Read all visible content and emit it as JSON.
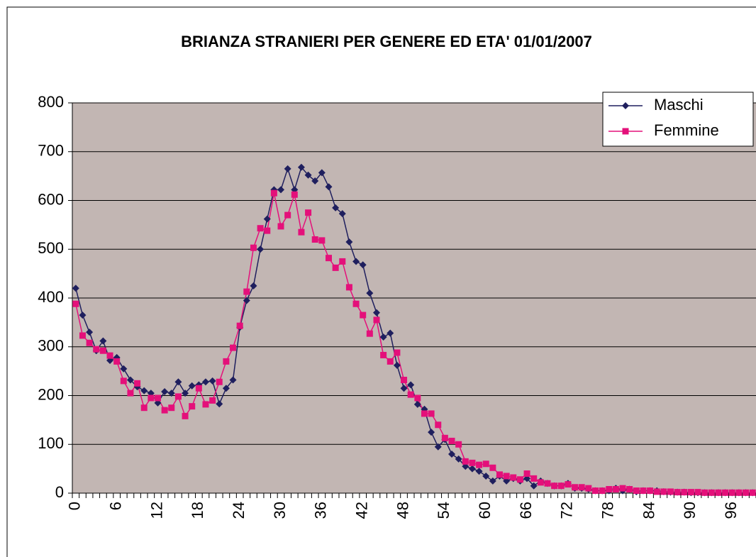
{
  "chart_data": {
    "type": "line",
    "title": "BRIANZA STRANIERI PER GENERE ED ETA' 01/01/2007",
    "categories": [
      0,
      null,
      null,
      null,
      null,
      null,
      6,
      null,
      null,
      null,
      null,
      null,
      12,
      null,
      null,
      null,
      null,
      null,
      18,
      null,
      null,
      null,
      null,
      null,
      24,
      null,
      null,
      null,
      null,
      null,
      30,
      null,
      null,
      null,
      null,
      null,
      36,
      null,
      null,
      null,
      null,
      null,
      42,
      null,
      null,
      null,
      null,
      null,
      48,
      null,
      null,
      null,
      null,
      null,
      54,
      null,
      null,
      null,
      null,
      null,
      60,
      null,
      null,
      null,
      null,
      null,
      66,
      null,
      null,
      null,
      null,
      null,
      72,
      null,
      null,
      null,
      null,
      null,
      78,
      null,
      null,
      null,
      null,
      null,
      84,
      null,
      null,
      null,
      null,
      null,
      90,
      null,
      null,
      null,
      null,
      null,
      96,
      null,
      null,
      null
    ],
    "series": [
      {
        "name": "Maschi",
        "color": "#1f1f5e",
        "marker": "diamond",
        "values": [
          420,
          365,
          330,
          292,
          312,
          272,
          278,
          255,
          232,
          218,
          210,
          205,
          185,
          208,
          205,
          228,
          205,
          220,
          222,
          228,
          230,
          183,
          215,
          232,
          340,
          395,
          425,
          500,
          562,
          622,
          622,
          665,
          622,
          668,
          652,
          640,
          657,
          628,
          585,
          573,
          515,
          475,
          468,
          410,
          370,
          320,
          328,
          262,
          215,
          222,
          182,
          172,
          125,
          95,
          110,
          80,
          70,
          55,
          50,
          45,
          35,
          25,
          35,
          25,
          30,
          25,
          30,
          15,
          25,
          20,
          15,
          15,
          20,
          10,
          10,
          8,
          5,
          5,
          5,
          10,
          5,
          8,
          3,
          5,
          5,
          5,
          3,
          2,
          2,
          2,
          1,
          1,
          1,
          1,
          1,
          1,
          1,
          1,
          1,
          1
        ]
      },
      {
        "name": "Femmine",
        "color": "#e4107a",
        "marker": "square",
        "values": [
          388,
          323,
          308,
          295,
          292,
          282,
          270,
          230,
          205,
          225,
          175,
          195,
          195,
          170,
          175,
          198,
          158,
          178,
          215,
          182,
          190,
          228,
          270,
          298,
          343,
          413,
          503,
          543,
          538,
          615,
          547,
          570,
          612,
          535,
          575,
          520,
          518,
          482,
          462,
          475,
          422,
          388,
          365,
          327,
          355,
          283,
          270,
          288,
          232,
          202,
          195,
          163,
          163,
          140,
          113,
          107,
          100,
          65,
          62,
          58,
          60,
          52,
          38,
          35,
          32,
          28,
          40,
          30,
          22,
          20,
          15,
          15,
          18,
          12,
          12,
          10,
          5,
          5,
          8,
          8,
          10,
          8,
          5,
          5,
          5,
          3,
          3,
          3,
          2,
          2,
          2,
          2,
          1,
          1,
          1,
          1,
          1,
          1,
          1,
          1
        ]
      }
    ],
    "ylim": [
      0,
      800
    ],
    "yticks": [
      0,
      100,
      200,
      300,
      400,
      500,
      600,
      700,
      800
    ],
    "grid": true,
    "legend": "top-right"
  }
}
